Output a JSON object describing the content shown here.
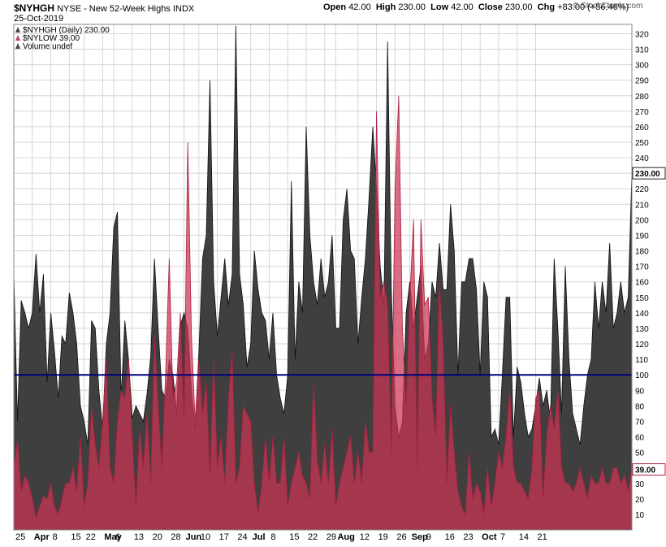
{
  "header": {
    "symbol": "$NYHGH",
    "description": "NYSE - New 52-Week Highs",
    "exchange": "INDX",
    "date": "25-Oct-2019",
    "open_label": "Open",
    "open_value": "42.00",
    "high_label": "High",
    "high_value": "230.00",
    "low_label": "Low",
    "low_value": "42.00",
    "close_label": "Close",
    "close_value": "230.00",
    "chg_label": "Chg",
    "chg_value": "+83.00 (+56.46%)",
    "brand": "© StockCharts.com"
  },
  "legend": [
    {
      "text": "$NYHGH (Daily) 230.00",
      "color": "#444444"
    },
    {
      "text": "$NYLOW 39.00",
      "color": "#c0405a"
    },
    {
      "text": "Volume undef",
      "color": "#444444"
    }
  ],
  "colors": {
    "highs_fill": "#3f3f3f",
    "highs_stroke": "#111111",
    "lows_fill": "#cc3355",
    "lows_stroke": "#a8203c",
    "refline": "#000080",
    "grid": "#d6d6d6"
  },
  "chart_data": {
    "type": "area",
    "ylim": [
      0,
      326
    ],
    "yticks": [
      10,
      20,
      30,
      40,
      50,
      60,
      70,
      80,
      90,
      100,
      110,
      120,
      130,
      140,
      150,
      160,
      170,
      180,
      190,
      200,
      210,
      220,
      230,
      240,
      250,
      260,
      270,
      280,
      290,
      300,
      310,
      320
    ],
    "reference_line": 100,
    "last_labels": [
      {
        "series": "$NYHGH",
        "value": "230.00"
      },
      {
        "series": "$NYLOW",
        "value": "39.00"
      }
    ],
    "x_ticks": [
      {
        "i": 0,
        "label": "25",
        "bold": false
      },
      {
        "i": 5,
        "label": "Apr",
        "bold": true
      },
      {
        "i": 10,
        "label": "8",
        "bold": false
      },
      {
        "i": 15,
        "label": "15",
        "bold": false
      },
      {
        "i": 19,
        "label": "22",
        "bold": false
      },
      {
        "i": 24,
        "label": "May",
        "bold": true
      },
      {
        "i": 27,
        "label": "6",
        "bold": false
      },
      {
        "i": 32,
        "label": "13",
        "bold": false
      },
      {
        "i": 37,
        "label": "20",
        "bold": false
      },
      {
        "i": 42,
        "label": "28",
        "bold": false
      },
      {
        "i": 46,
        "label": "Jun",
        "bold": true
      },
      {
        "i": 50,
        "label": "10",
        "bold": false
      },
      {
        "i": 55,
        "label": "17",
        "bold": false
      },
      {
        "i": 60,
        "label": "24",
        "bold": false
      },
      {
        "i": 64,
        "label": "Jul",
        "bold": true
      },
      {
        "i": 69,
        "label": "8",
        "bold": false
      },
      {
        "i": 74,
        "label": "15",
        "bold": false
      },
      {
        "i": 79,
        "label": "22",
        "bold": false
      },
      {
        "i": 84,
        "label": "29",
        "bold": false
      },
      {
        "i": 87,
        "label": "Aug",
        "bold": true
      },
      {
        "i": 93,
        "label": "12",
        "bold": false
      },
      {
        "i": 98,
        "label": "19",
        "bold": false
      },
      {
        "i": 103,
        "label": "26",
        "bold": false
      },
      {
        "i": 107,
        "label": "Sep",
        "bold": true
      },
      {
        "i": 111,
        "label": "9",
        "bold": false
      },
      {
        "i": 116,
        "label": "16",
        "bold": false
      },
      {
        "i": 121,
        "label": "23",
        "bold": false
      },
      {
        "i": 126,
        "label": "Oct",
        "bold": true
      },
      {
        "i": 131,
        "label": "7",
        "bold": false
      },
      {
        "i": 136,
        "label": "14",
        "bold": false
      },
      {
        "i": 141,
        "label": "21",
        "bold": false
      }
    ],
    "series": [
      {
        "name": "$NYHGH",
        "values": [
          165,
          70,
          148,
          140,
          130,
          140,
          178,
          140,
          165,
          95,
          140,
          115,
          85,
          125,
          120,
          153,
          140,
          120,
          80,
          70,
          55,
          135,
          130,
          90,
          65,
          120,
          140,
          195,
          205,
          85,
          135,
          110,
          72,
          80,
          75,
          70,
          88,
          112,
          175,
          130,
          90,
          85,
          110,
          100,
          75,
          132,
          140,
          130,
          90,
          65,
          115,
          175,
          190,
          290,
          160,
          125,
          150,
          175,
          145,
          165,
          325,
          165,
          145,
          105,
          120,
          180,
          155,
          140,
          135,
          110,
          140,
          100,
          85,
          75,
          100,
          225,
          110,
          160,
          140,
          260,
          190,
          160,
          145,
          175,
          150,
          160,
          190,
          130,
          130,
          200,
          220,
          180,
          175,
          120,
          150,
          175,
          215,
          260,
          220,
          170,
          145,
          315,
          155,
          80,
          60,
          70,
          140,
          160,
          130,
          150,
          170,
          110,
          120,
          160,
          150,
          185,
          155,
          155,
          210,
          180,
          100,
          160,
          160,
          175,
          175,
          155,
          100,
          160,
          150,
          60,
          65,
          55,
          100,
          150,
          150,
          60,
          105,
          95,
          75,
          60,
          65,
          80,
          98,
          80,
          90,
          70,
          175,
          130,
          75,
          170,
          110,
          75,
          65,
          55,
          80,
          100,
          110,
          160,
          130,
          160,
          140,
          185,
          130,
          140,
          160,
          140,
          150,
          230
        ],
        "step": 0.274
      },
      {
        "name": "$NYLOW",
        "values": [
          40,
          58,
          25,
          35,
          30,
          20,
          8,
          15,
          22,
          20,
          30,
          15,
          10,
          20,
          30,
          30,
          40,
          25,
          60,
          15,
          30,
          80,
          55,
          40,
          70,
          110,
          40,
          30,
          70,
          90,
          85,
          110,
          60,
          15,
          65,
          40,
          75,
          30,
          125,
          80,
          40,
          100,
          175,
          85,
          95,
          140,
          70,
          250,
          125,
          70,
          110,
          75,
          95,
          35,
          110,
          40,
          60,
          30,
          85,
          115,
          30,
          40,
          80,
          75,
          70,
          30,
          10,
          30,
          60,
          30,
          60,
          30,
          30,
          60,
          15,
          30,
          40,
          50,
          35,
          30,
          20,
          95,
          45,
          30,
          55,
          30,
          65,
          15,
          30,
          40,
          50,
          60,
          30,
          50,
          30,
          70,
          50,
          50,
          270,
          150,
          160,
          145,
          50,
          220,
          280,
          130,
          80,
          150,
          200,
          40,
          200,
          145,
          150,
          85,
          60,
          160,
          120,
          30,
          80,
          50,
          25,
          15,
          10,
          50,
          20,
          30,
          25,
          10,
          40,
          15,
          30,
          50,
          40,
          60,
          90,
          40,
          30,
          30,
          25,
          20,
          40,
          85,
          90,
          20,
          60,
          80,
          65,
          90,
          40,
          30,
          30,
          25,
          30,
          40,
          30,
          20,
          35,
          30,
          30,
          40,
          30,
          30,
          40,
          40,
          30,
          35,
          25,
          39
        ],
        "step": 0.274
      }
    ]
  }
}
